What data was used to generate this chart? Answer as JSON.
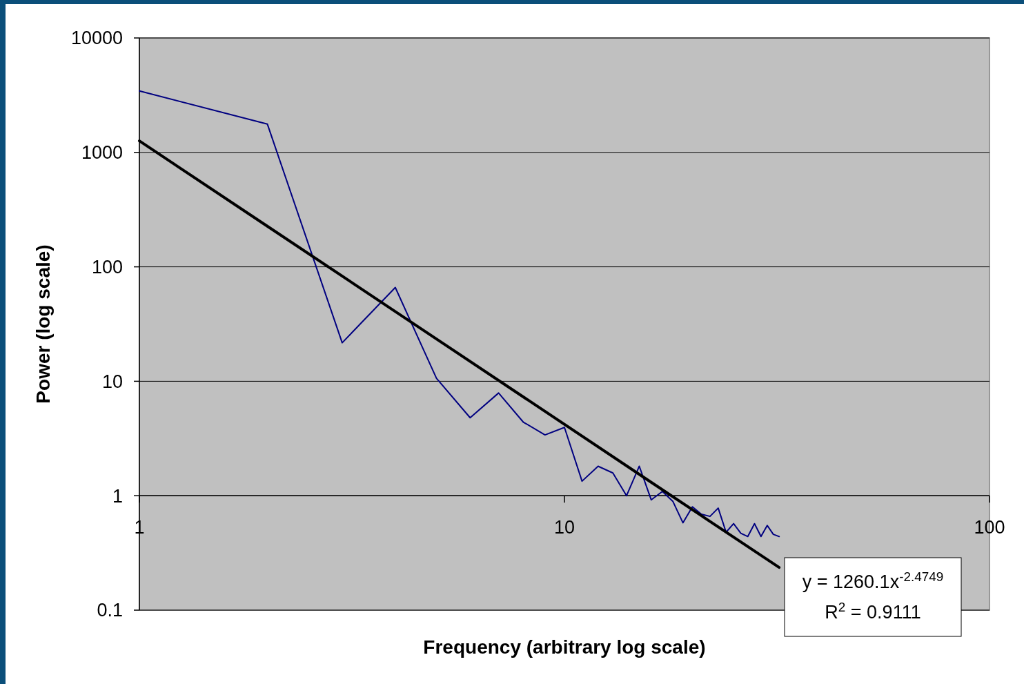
{
  "chart_data": {
    "type": "line",
    "xlabel": "Frequency (arbitrary log scale)",
    "ylabel": "Power (log scale)",
    "series": [
      {
        "color": "#000080",
        "x": [
          1,
          2,
          3,
          4,
          5,
          6,
          7,
          8,
          9,
          10,
          11,
          12,
          13,
          14,
          15,
          16,
          17,
          18,
          19,
          20,
          21,
          22,
          23,
          24,
          25,
          26,
          27,
          28,
          29,
          30,
          31,
          32
        ],
        "values": [
          3440,
          1770,
          21.7,
          66,
          10.6,
          4.8,
          7.9,
          4.4,
          3.4,
          3.95,
          1.34,
          1.81,
          1.58,
          1.0,
          1.81,
          0.92,
          1.09,
          0.89,
          0.58,
          0.8,
          0.69,
          0.66,
          0.78,
          0.48,
          0.57,
          0.47,
          0.44,
          0.57,
          0.44,
          0.55,
          0.46,
          0.44
        ]
      },
      {
        "color": "#000000",
        "x": [
          1,
          2,
          4,
          8,
          16,
          32
        ],
        "values": [
          1260.1,
          226.4,
          40.7,
          7.31,
          1.31,
          0.236
        ]
      }
    ],
    "annotations": [
      "y = 1260.1x$^{-2.4749}$",
      "R$^{2}$ = 0.9111"
    ],
    "log": "xy",
    "grid": "y",
    "marker": "none",
    "line_style": "solid",
    "xlim": [
      1,
      100
    ],
    "xticks": [
      1,
      10,
      100
    ],
    "ylim": [
      0.1,
      10000
    ],
    "yticks": [
      0.1,
      1,
      10,
      100,
      1000,
      10000
    ]
  }
}
